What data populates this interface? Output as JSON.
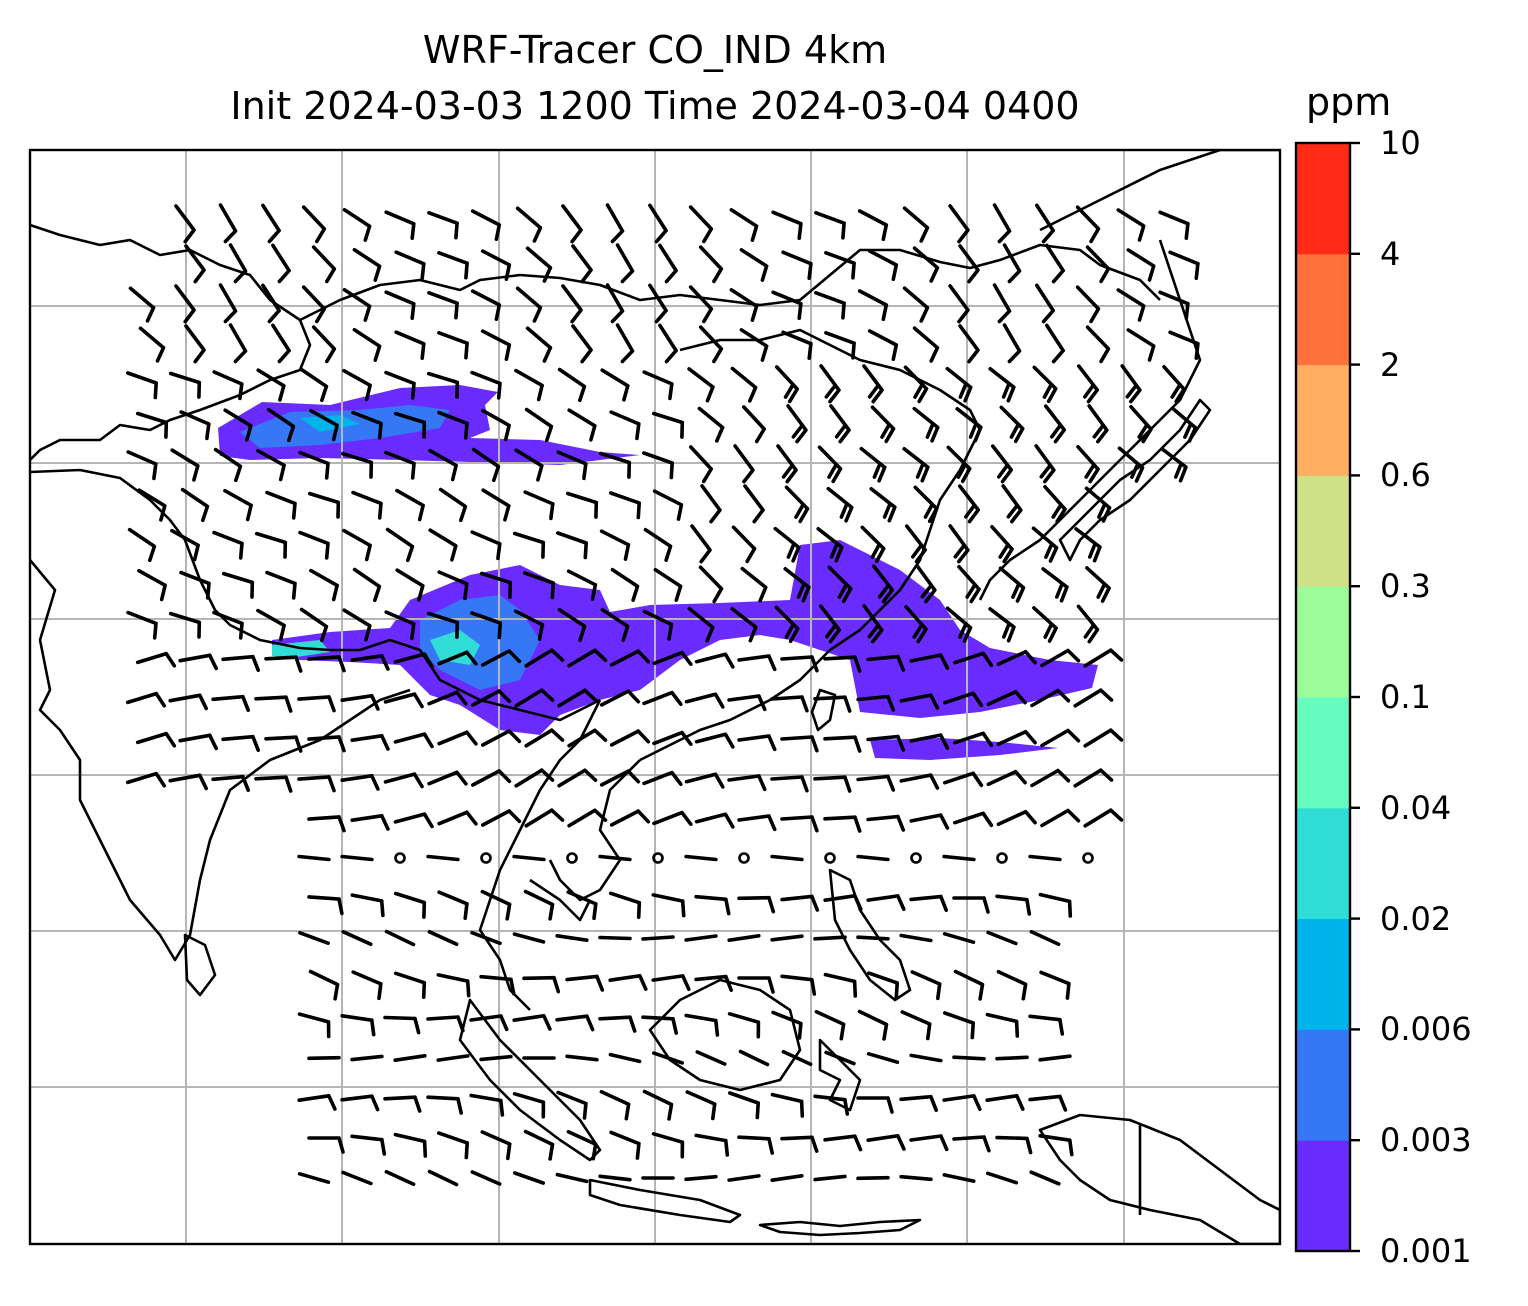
{
  "title_line1": "WRF-Tracer CO_IND 4km",
  "title_line2": "Init 2024-03-03 1200 Time 2024-03-04 0400",
  "colorbar": {
    "unit": "ppm",
    "levels": [
      "0.001",
      "0.003",
      "0.006",
      "0.02",
      "0.04",
      "0.1",
      "0.3",
      "0.6",
      "2",
      "4",
      "10"
    ],
    "colors": [
      "#6a2bff",
      "#3677f6",
      "#00b3ea",
      "#2fdcd6",
      "#66fcc0",
      "#9dfc9a",
      "#d0e287",
      "#ffae62",
      "#ff713a",
      "#ff2b17"
    ]
  },
  "map": {
    "grid": "on",
    "overlay": "wind-barbs",
    "basemap": "coastlines-and-borders"
  }
}
